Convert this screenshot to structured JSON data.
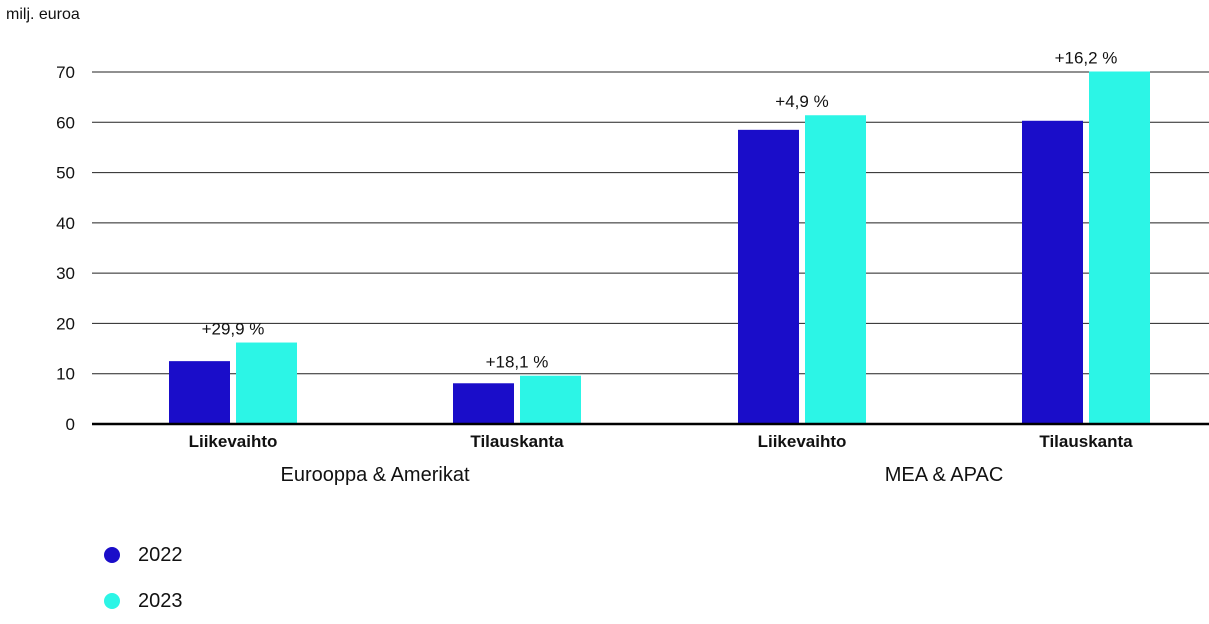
{
  "chart_data": {
    "type": "bar",
    "ylabel": "milj. euroa",
    "ylim": [
      0,
      70
    ],
    "yticks": [
      0,
      10,
      20,
      30,
      40,
      50,
      60,
      70
    ],
    "grid": true,
    "legend_position": "bottom-left",
    "groups": [
      {
        "name": "Eurooppa & Amerikat",
        "categories": [
          "Liikevaihto",
          "Tilauskanta"
        ]
      },
      {
        "name": "MEA & APAC",
        "categories": [
          "Liikevaihto",
          "Tilauskanta"
        ]
      }
    ],
    "categories": [
      "Liikevaihto",
      "Tilauskanta",
      "Liikevaihto",
      "Tilauskanta"
    ],
    "series": [
      {
        "name": "2022",
        "color": "#1a0dc9",
        "values": [
          12.5,
          8.1,
          58.5,
          60.3
        ]
      },
      {
        "name": "2023",
        "color": "#2cf5e6",
        "values": [
          16.2,
          9.6,
          61.4,
          70.1
        ]
      }
    ],
    "annotations": [
      "+29,9 %",
      "+18,1 %",
      "+4,9 %",
      "+16,2 %"
    ]
  }
}
